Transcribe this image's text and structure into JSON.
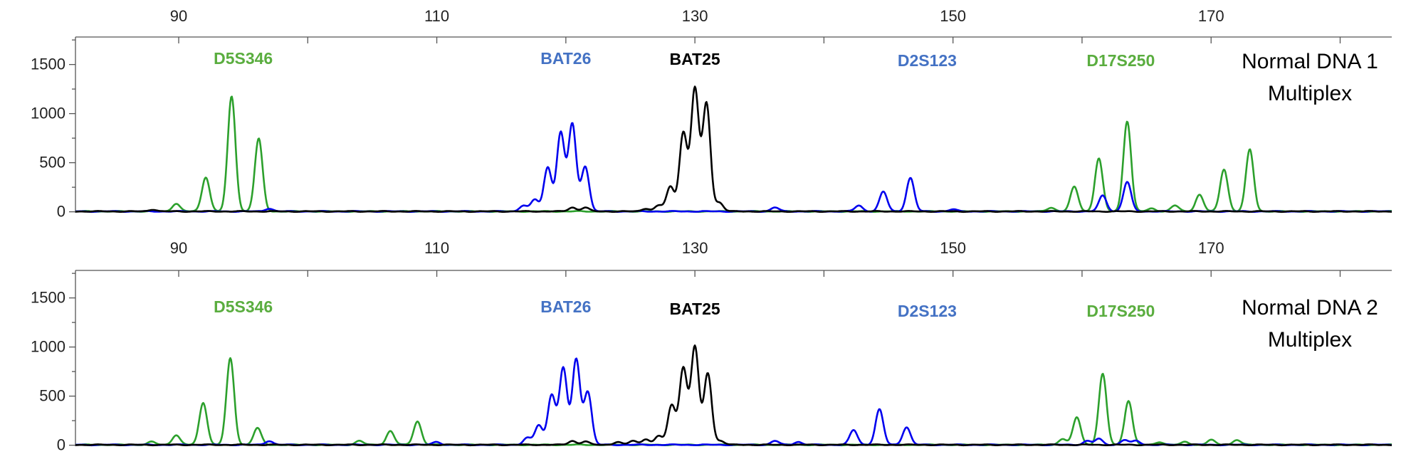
{
  "chart_data": [
    {
      "type": "line",
      "sample_label": [
        "Normal DNA 1",
        "Multiplex"
      ],
      "x_ticks": [
        90,
        110,
        130,
        150,
        170
      ],
      "xlim": [
        82,
        184
      ],
      "y_ticks": [
        0,
        500,
        1000,
        1500
      ],
      "ylim": [
        -10,
        1780
      ],
      "markers": [
        {
          "name": "D5S346",
          "color": "#5aad3f",
          "x": 95
        },
        {
          "name": "BAT26",
          "color": "#4472c4",
          "x": 120
        },
        {
          "name": "BAT25",
          "color": "#000000",
          "x": 130
        },
        {
          "name": "D2S123",
          "color": "#4472c4",
          "x": 148
        },
        {
          "name": "D17S250",
          "color": "#5aad3f",
          "x": 163
        }
      ],
      "series": [
        {
          "color": "#2ca02c",
          "peaks": [
            [
              89.8,
              80
            ],
            [
              92.1,
              350
            ],
            [
              94.1,
              1170
            ],
            [
              96.2,
              740
            ],
            [
              157.6,
              40
            ],
            [
              159.4,
              250
            ],
            [
              161.3,
              540
            ],
            [
              163.5,
              920
            ],
            [
              165.4,
              30
            ],
            [
              167.2,
              60
            ],
            [
              169.1,
              170
            ],
            [
              171.0,
              430
            ],
            [
              173.0,
              630
            ]
          ]
        },
        {
          "color": "#0000ee",
          "peaks": [
            [
              97.0,
              30
            ],
            [
              116.7,
              60
            ],
            [
              117.6,
              120
            ],
            [
              118.6,
              450
            ],
            [
              119.6,
              800
            ],
            [
              120.5,
              890
            ],
            [
              121.5,
              460
            ],
            [
              136.2,
              40
            ],
            [
              142.7,
              60
            ],
            [
              144.6,
              200
            ],
            [
              146.7,
              340
            ],
            [
              150.0,
              20
            ],
            [
              161.6,
              160
            ],
            [
              163.5,
              300
            ]
          ]
        },
        {
          "color": "#000000",
          "peaks": [
            [
              88.0,
              20
            ],
            [
              120.5,
              40
            ],
            [
              121.5,
              40
            ],
            [
              126.2,
              30
            ],
            [
              127.2,
              60
            ],
            [
              128.1,
              250
            ],
            [
              129.1,
              800
            ],
            [
              130.0,
              1250
            ],
            [
              130.9,
              1100
            ],
            [
              131.9,
              90
            ]
          ]
        }
      ]
    },
    {
      "type": "line",
      "sample_label": [
        "Normal DNA 2",
        "Multiplex"
      ],
      "x_ticks": [
        90,
        110,
        130,
        150,
        170
      ],
      "xlim": [
        82,
        184
      ],
      "y_ticks": [
        0,
        500,
        1000,
        1500
      ],
      "ylim": [
        -10,
        1780
      ],
      "markers": [
        {
          "name": "D5S346",
          "color": "#5aad3f",
          "x": 95
        },
        {
          "name": "BAT26",
          "color": "#4472c4",
          "x": 120
        },
        {
          "name": "BAT25",
          "color": "#000000",
          "x": 130
        },
        {
          "name": "D2S123",
          "color": "#4472c4",
          "x": 148
        },
        {
          "name": "D17S250",
          "color": "#5aad3f",
          "x": 163
        }
      ],
      "series": [
        {
          "color": "#2ca02c",
          "peaks": [
            [
              87.9,
              30
            ],
            [
              89.8,
              100
            ],
            [
              91.9,
              430
            ],
            [
              94.0,
              880
            ],
            [
              96.1,
              170
            ],
            [
              104.0,
              40
            ],
            [
              106.4,
              140
            ],
            [
              108.5,
              240
            ],
            [
              158.5,
              60
            ],
            [
              159.6,
              280
            ],
            [
              161.6,
              720
            ],
            [
              163.6,
              450
            ],
            [
              166.0,
              30
            ],
            [
              168.0,
              30
            ],
            [
              170.0,
              50
            ],
            [
              172.0,
              50
            ]
          ]
        },
        {
          "color": "#0000ee",
          "peaks": [
            [
              97.0,
              40
            ],
            [
              110.0,
              30
            ],
            [
              117.0,
              70
            ],
            [
              117.9,
              200
            ],
            [
              118.9,
              510
            ],
            [
              119.8,
              780
            ],
            [
              120.8,
              870
            ],
            [
              121.7,
              540
            ],
            [
              136.2,
              40
            ],
            [
              138.0,
              30
            ],
            [
              142.3,
              150
            ],
            [
              144.3,
              360
            ],
            [
              146.4,
              180
            ],
            [
              160.4,
              40
            ],
            [
              161.3,
              60
            ],
            [
              163.3,
              50
            ],
            [
              164.2,
              40
            ]
          ]
        },
        {
          "color": "#000000",
          "peaks": [
            [
              120.5,
              40
            ],
            [
              121.5,
              35
            ],
            [
              124.0,
              30
            ],
            [
              125.2,
              40
            ],
            [
              126.2,
              60
            ],
            [
              127.2,
              90
            ],
            [
              128.2,
              400
            ],
            [
              129.1,
              780
            ],
            [
              130.0,
              1000
            ],
            [
              131.0,
              730
            ],
            [
              132.0,
              40
            ]
          ]
        }
      ]
    }
  ]
}
